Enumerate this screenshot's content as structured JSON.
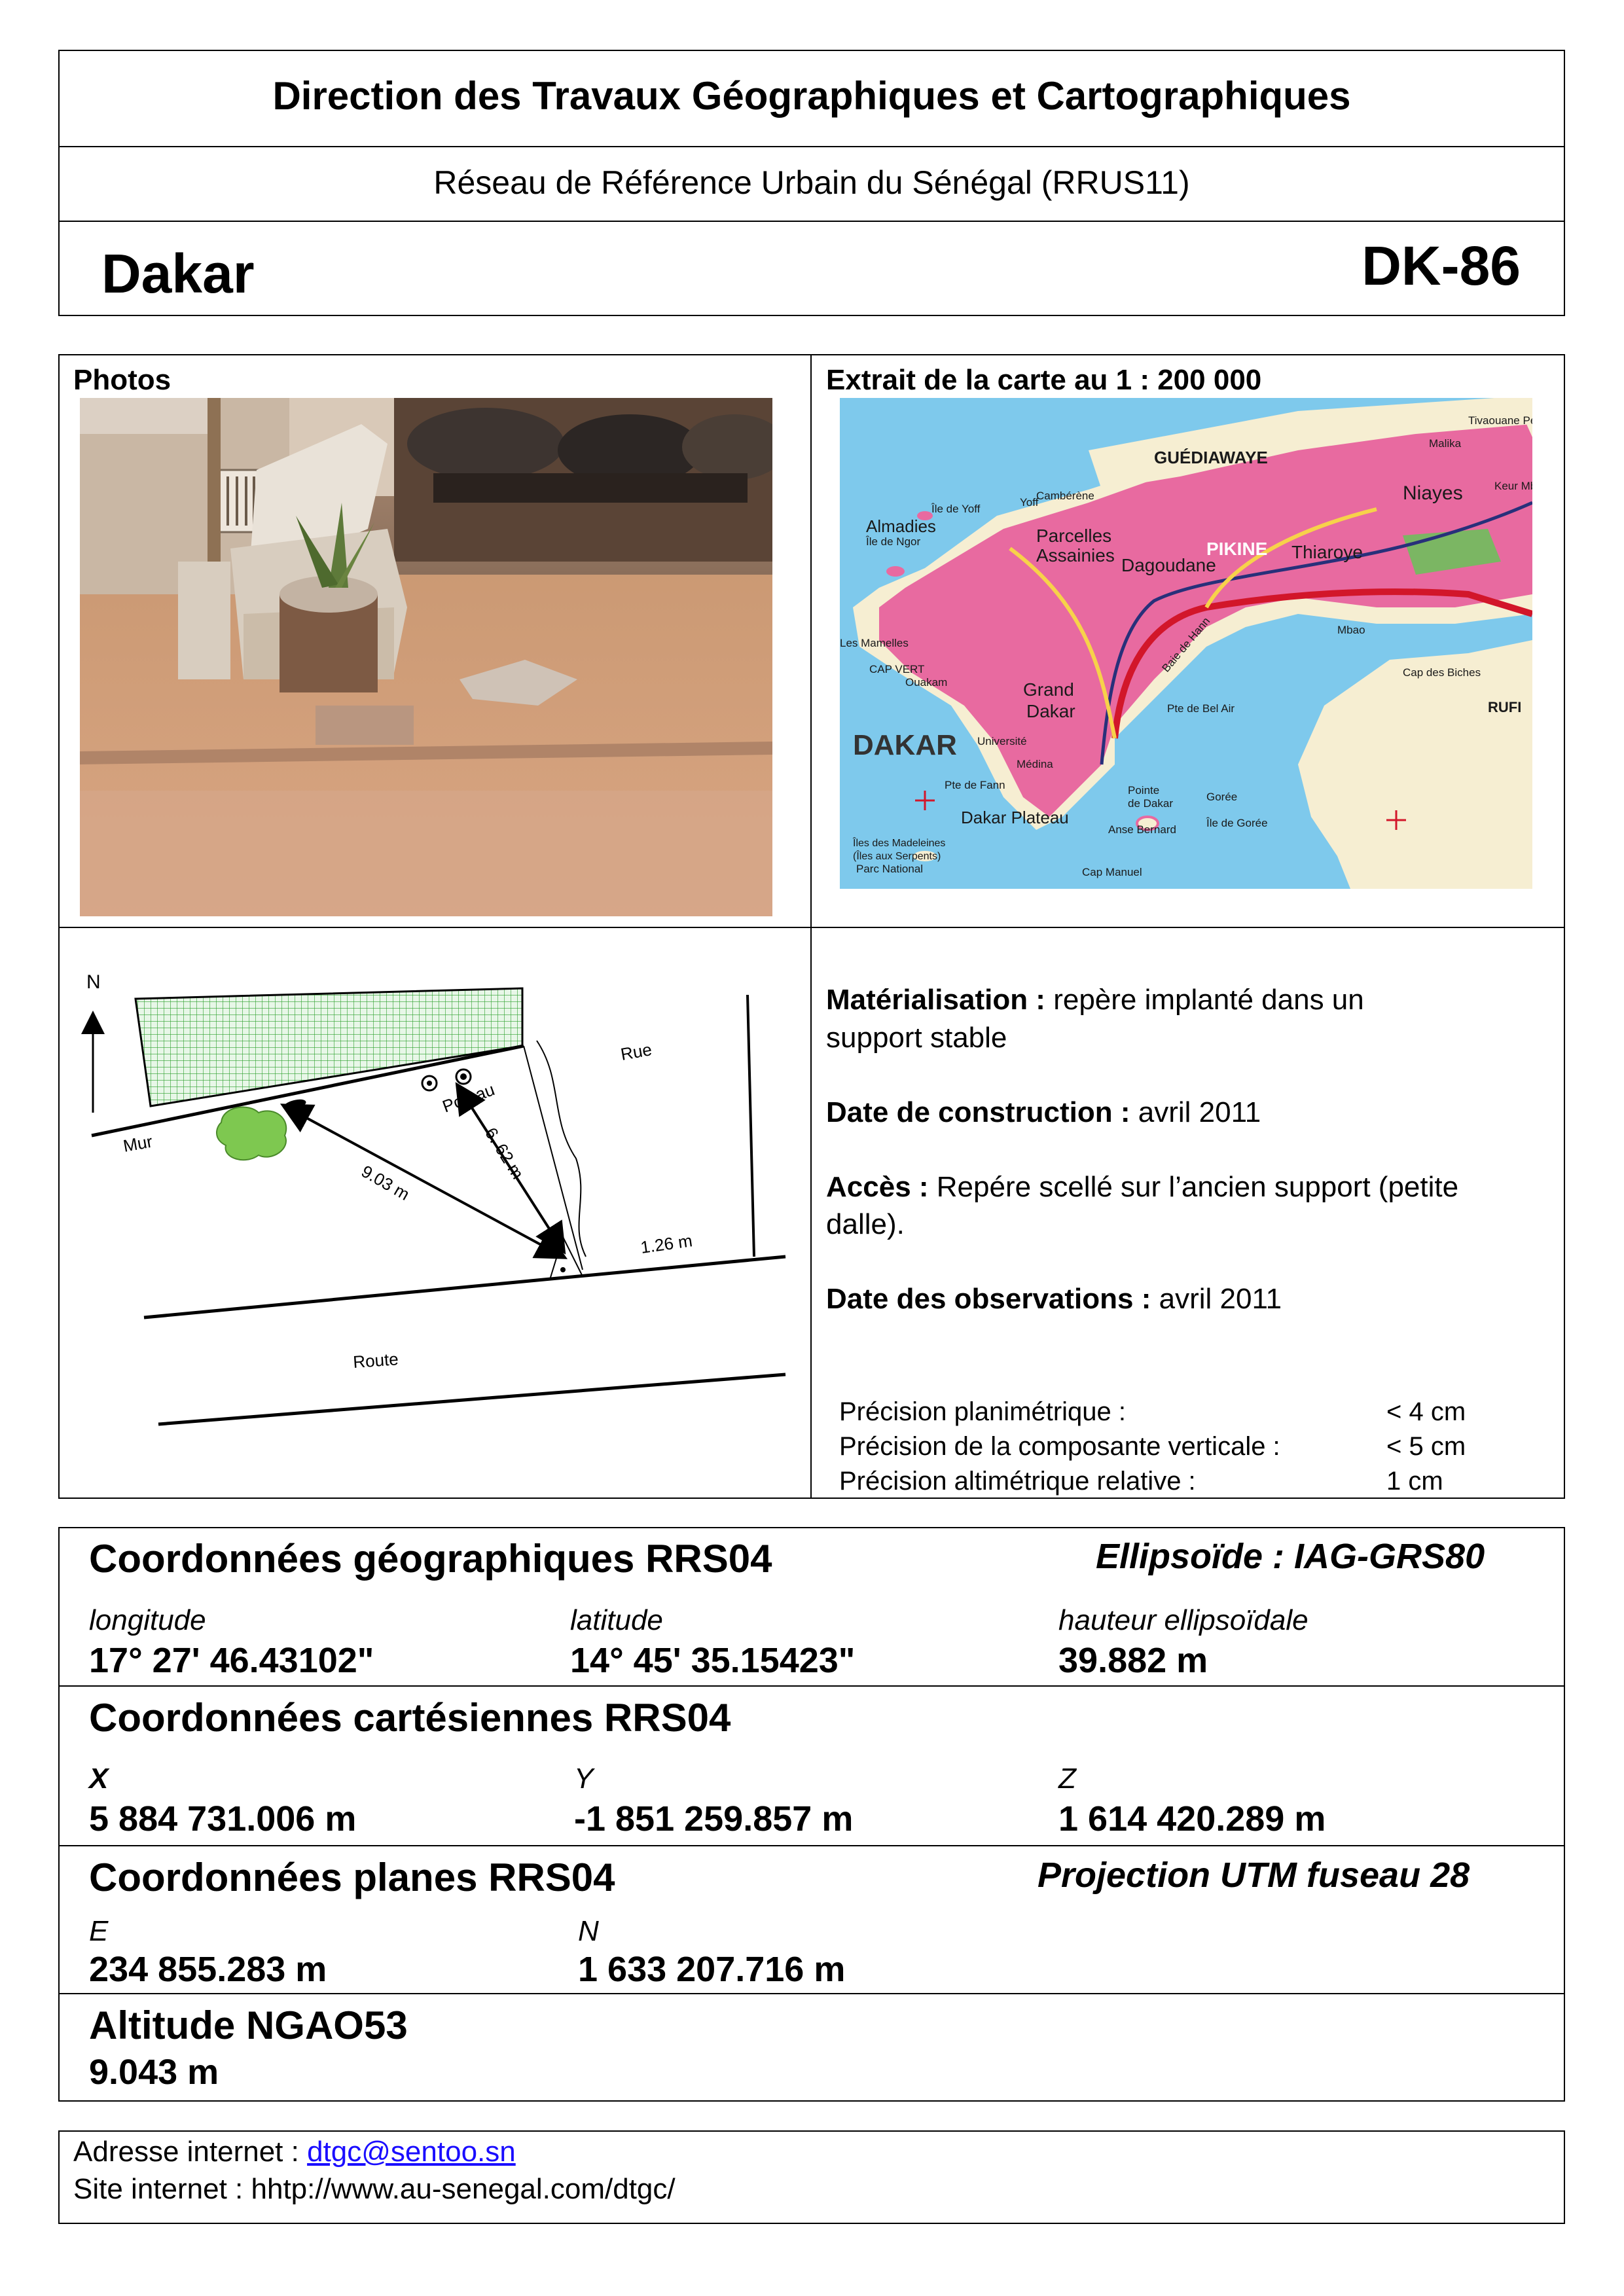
{
  "header": {
    "org": "Direction des Travaux Géographiques et Cartographiques",
    "network": "Réseau de Référence Urbain du Sénégal (RRUS11)",
    "city": "Dakar",
    "code": "DK-86"
  },
  "photos": {
    "label": "Photos"
  },
  "map": {
    "label": "Extrait de la carte au 1 : 200 000",
    "labels": {
      "guediawaye": "GUÉDIAWAYE",
      "dakar": "DAKAR",
      "pikine": "PIKINE",
      "parcelles": "Parcelles",
      "assainies": "Assainies",
      "dagoudane": "Dagoudane",
      "thiaroye": "Thiaroye",
      "niayes": "Niayes",
      "almadies": "Almadies",
      "grand": "Grand",
      "dakar2": "Dakar",
      "dakar_plateau": "Dakar Plateau",
      "pte_bel_air": "Pte de Bel Air",
      "gorée": "Gorée",
      "ile_de_gorée": "Île de Gorée",
      "cap_manuel": "Cap Manuel",
      "ile_de_yoff": "Île de Yoff",
      "ile_de_ngor": "Île de Ngor",
      "cap_vert": "CAP VERT",
      "les_mamelles": "Les Mamelles",
      "ouakam": "Ouakam",
      "baie_de_hann": "Baie de Hann",
      "ufi": "RUFI",
      "tivaouane": "Tivaouane Pe",
      "malika": "Malika",
      "mbao": "Mbao",
      "keur_mbaye": "Keur Mb",
      "cap_des_biches": "Cap des Biches",
      "madeleines": "Îles des Madeleines",
      "madeleines2": "(Îles aux Serpents)",
      "parc_national": "Parc National",
      "pointe_dakar": "Pointe",
      "pointe_dakar2": "de Dakar",
      "anse_bernard": "Anse Bernard",
      "medina": "Médina",
      "universite": "Université",
      "pte_fann": "Pte de Fann",
      "yoff": "Yoff",
      "cambérène": "Cambérène"
    },
    "colors": {
      "sea": "#7ec9ec",
      "urban": "#e86aa0",
      "land": "#f6eed2",
      "road": "#d2162a",
      "forest": "#6fbf5c"
    }
  },
  "sketch": {
    "north": "N",
    "mur": "Mur",
    "rue": "Rue",
    "route": "Route",
    "poteau": "Poteau",
    "d1": "9.03 m",
    "d2": "6. 62 m",
    "d3": "1.26 m"
  },
  "info": {
    "mat_label": "Matérialisation :",
    "mat_value1": "repère implanté dans un",
    "mat_value2": "support stable",
    "date_construction_label": "Date de construction :",
    "date_construction_value": "avril 2011",
    "acces_label": "Accès :",
    "acces_value1": "Repére scellé sur l’ancien support (petite",
    "acces_value2": "dalle).",
    "date_obs_label": "Date des observations :",
    "date_obs_value": "avril 2011"
  },
  "precision": [
    {
      "label": "Précision planimétrique :",
      "value": "< 4 cm"
    },
    {
      "label": "Précision de la composante verticale :",
      "value": "< 5 cm"
    },
    {
      "label": "Précision altimétrique relative :",
      "value": "1 cm"
    }
  ],
  "geo": {
    "title": "Coordonnées géographiques RRS04",
    "ellipsoid": "Ellipsoïde : IAG-GRS80",
    "lon_label": "longitude",
    "lon_value": "17° 27' 46.43102\"",
    "lat_label": "latitude",
    "lat_value": "14° 45' 35.15423\"",
    "h_label": "hauteur ellipsoïdale",
    "h_value": "39.882 m"
  },
  "cart": {
    "title": "Coordonnées cartésiennes RRS04",
    "x_label": "X",
    "x_value": "5 884 731.006 m",
    "y_label": "Y",
    "y_value": "-1 851 259.857 m",
    "z_label": "Z",
    "z_value": "1 614 420.289 m"
  },
  "plan": {
    "title": "Coordonnées planes RRS04",
    "projection": "Projection UTM fuseau 28",
    "e_label": "E",
    "e_value": "234 855.283 m",
    "n_label": "N",
    "n_value": "1 633 207.716 m"
  },
  "alt": {
    "title": "Altitude NGAO53",
    "value": "9.043 m"
  },
  "footer": {
    "email_label": "Adresse internet :",
    "email": "dtgc@sentoo.sn",
    "site_label": "Site internet :",
    "site": "hhtp://www.au-senegal.com/dtgc/"
  }
}
